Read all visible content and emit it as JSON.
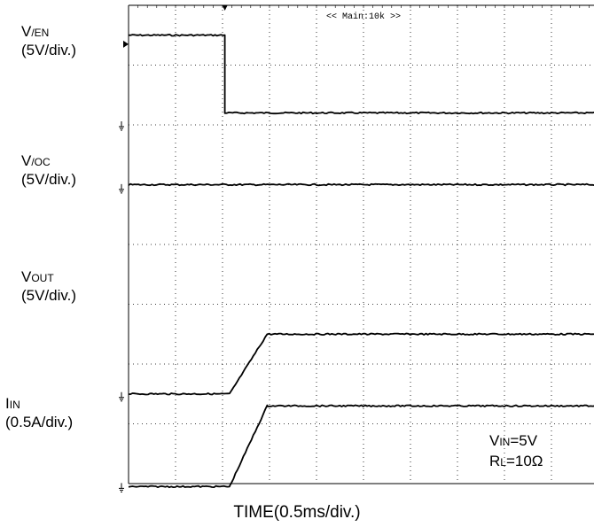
{
  "chart_data": {
    "type": "line",
    "title": "",
    "xlabel": "TIME(0.5ms/div.)",
    "ylabel": "",
    "divisions_x": 10,
    "divisions_y": 8,
    "x_unit": "ms",
    "x_per_div": 0.5,
    "grid": true,
    "annotation_top": "<< Main:10k >>",
    "conditions": [
      {
        "main": "V",
        "sub": "IN",
        "value": "=5V"
      },
      {
        "main": "R",
        "sub": "L",
        "value": "=10Ω"
      }
    ],
    "series": [
      {
        "label_main": "V",
        "label_sub": "/EN",
        "scale": "(5V/div.)",
        "x_div": [
          0,
          2.05,
          2.05,
          10
        ],
        "y_div": [
          7.5,
          7.5,
          6.2,
          6.2
        ]
      },
      {
        "label_main": "V",
        "label_sub": "/OC",
        "scale": "(5V/div.)",
        "x_div": [
          0,
          10
        ],
        "y_div": [
          5.0,
          5.0
        ]
      },
      {
        "label_main": "V",
        "label_sub": "OUT",
        "scale": "(5V/div.)",
        "x_div": [
          0,
          2.15,
          2.95,
          10
        ],
        "y_div": [
          1.5,
          1.5,
          2.5,
          2.5
        ]
      },
      {
        "label_main": "I",
        "label_sub": "IN",
        "scale": "(0.5A/div.)",
        "x_div": [
          0,
          2.15,
          2.95,
          10
        ],
        "y_div": [
          -0.05,
          -0.05,
          1.3,
          1.3
        ]
      }
    ]
  }
}
